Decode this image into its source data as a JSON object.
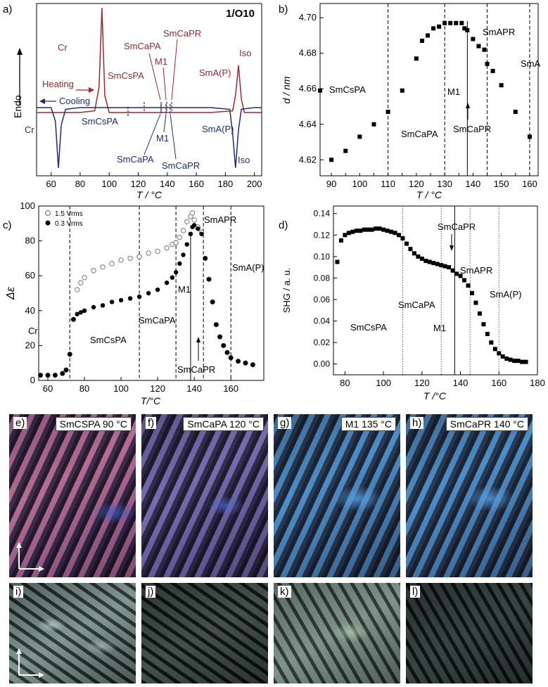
{
  "figure_title": "1/O10",
  "colors": {
    "heating": "#a0272b",
    "cooling": "#1e2b73",
    "black": "#000000"
  },
  "icons": {
    "polarizer": "crossed-polarizer-arrows-icon"
  },
  "panel_a": {
    "label": "a)",
    "title": "1/O10",
    "ylabel": "Endo",
    "xlabel": "T / °C",
    "xticks": [
      "60",
      "80",
      "100",
      "120",
      "140",
      "160",
      "180",
      "200"
    ],
    "heating_label": "Heating",
    "cooling_label": "Cooling",
    "heating_phases": [
      "Cr",
      "SmCsPA",
      "SmCaPA",
      "M1",
      "SmCaPR",
      "SmA(P)",
      "Iso"
    ],
    "cooling_phases": [
      "Cr",
      "SmCsPA",
      "SmCaPA",
      "M1",
      "SmCaPR",
      "SmA(P)",
      "Iso"
    ]
  },
  "panel_b": {
    "label": "b)",
    "ylabel": "d / nm",
    "xlabel": "T / °C",
    "xticks": [
      "90",
      "95",
      "100",
      "105",
      "110",
      "115",
      "120",
      "125",
      "130",
      "135",
      "140",
      "145",
      "150",
      "155",
      "160"
    ],
    "xticks_shown": [
      "90",
      "100",
      "110",
      "120",
      "130",
      "140",
      "150",
      "160"
    ],
    "yticks": [
      "4.62",
      "4.64",
      "4.66",
      "4.68",
      "4.70"
    ],
    "phases": [
      "SmCsPA",
      "SmCaPA",
      "M1",
      "SmCaPR",
      "SmAPR",
      "SmA"
    ]
  },
  "panel_c": {
    "label": "c)",
    "ylabel": "Δε",
    "xlabel": "T/°C",
    "xticks": [
      "60",
      "80",
      "100",
      "120",
      "140",
      "160"
    ],
    "yticks": [
      "0",
      "20",
      "40",
      "60",
      "80",
      "100"
    ],
    "legend": [
      "1.5 Vrms",
      "0.3 Vrms"
    ],
    "phases": [
      "Cr",
      "SmCsPA",
      "SmCaPA",
      "M1",
      "SmCaPR",
      "SmAPR",
      "SmA(P)"
    ]
  },
  "panel_d": {
    "label": "d)",
    "ylabel": "SHG / a. u.",
    "xlabel": "T /°C",
    "xticks": [
      "80",
      "100",
      "120",
      "140",
      "160",
      "180"
    ],
    "yticks": [
      "0.00",
      "0.02",
      "0.04",
      "0.06",
      "0.08",
      "0.10",
      "0.12",
      "0.14"
    ],
    "phases": [
      "SmCsPA",
      "SmCaPA",
      "M1",
      "SmCaPR",
      "SmAPR",
      "SmA(P)"
    ]
  },
  "photos_top": [
    {
      "label": "e)",
      "tag": "SmCSPA 90 °C"
    },
    {
      "label": "f)",
      "tag": "SmCaPA 120 °C"
    },
    {
      "label": "g)",
      "tag": "M1 135 °C"
    },
    {
      "label": "h)",
      "tag": "SmCaPR 140 °C"
    }
  ],
  "photos_bottom": [
    {
      "label": "i)"
    },
    {
      "label": "j)"
    },
    {
      "label": "k)"
    },
    {
      "label": "l)"
    }
  ],
  "chart_data": [
    {
      "type": "line",
      "title": "1/O10",
      "xlabel": "T / °C",
      "ylabel": "Endo",
      "xlim": [
        50,
        205
      ],
      "series": [
        {
          "name": "Heating",
          "x": [
            50,
            80,
            90,
            93,
            95,
            97,
            100,
            115,
            122,
            130,
            134,
            136,
            138,
            140,
            143,
            150,
            170,
            185,
            187,
            189,
            191,
            193,
            200,
            205
          ],
          "y": [
            0.3,
            0.3,
            0.31,
            0.45,
            0.92,
            0.4,
            0.3,
            0.3,
            0.3,
            0.3,
            0.3,
            0.3,
            0.3,
            0.3,
            0.3,
            0.3,
            0.3,
            0.31,
            0.4,
            0.58,
            0.38,
            0.3,
            0.3,
            0.3
          ]
        },
        {
          "name": "Cooling",
          "x": [
            50,
            60,
            63,
            65,
            67,
            70,
            80,
            100,
            110,
            130,
            133,
            136,
            140,
            150,
            170,
            183,
            185,
            187,
            189,
            191,
            200,
            205
          ],
          "y": [
            0.25,
            0.25,
            0.17,
            -0.1,
            0.15,
            0.24,
            0.25,
            0.25,
            0.25,
            0.25,
            0.25,
            0.25,
            0.25,
            0.25,
            0.25,
            0.24,
            0.1,
            -0.1,
            0.12,
            0.24,
            0.25,
            0.25
          ]
        }
      ]
    },
    {
      "type": "scatter",
      "xlabel": "T / °C",
      "ylabel": "d / nm",
      "xlim": [
        86,
        163
      ],
      "ylim": [
        4.611,
        4.708
      ],
      "series": [
        {
          "name": "",
          "x": [
            86,
            90,
            95,
            100,
            105,
            110,
            115,
            120,
            122,
            124,
            126,
            128,
            130,
            132,
            134,
            136,
            137,
            138,
            140,
            142,
            144,
            145,
            147,
            150,
            155,
            160
          ],
          "y": [
            4.659,
            4.62,
            4.625,
            4.633,
            4.64,
            4.647,
            4.659,
            4.677,
            4.687,
            4.69,
            4.694,
            4.695,
            4.697,
            4.697,
            4.697,
            4.697,
            4.694,
            4.693,
            4.688,
            4.684,
            4.682,
            4.674,
            4.67,
            4.662,
            4.647,
            4.633
          ]
        }
      ]
    },
    {
      "type": "scatter",
      "xlabel": "T/°C",
      "ylabel": "Δε",
      "xlim": [
        55,
        178
      ],
      "ylim": [
        0,
        100
      ],
      "series": [
        {
          "name": "1.5 Vrms",
          "x": [
            56,
            60,
            64,
            68,
            70,
            72,
            74,
            76,
            78,
            80,
            85,
            90,
            95,
            100,
            105,
            110,
            115,
            120,
            125,
            128,
            130,
            132,
            134,
            136,
            138,
            139,
            140,
            142,
            144,
            146,
            148,
            150,
            152,
            154,
            156,
            158,
            160,
            164,
            168,
            172
          ],
          "y": [
            3,
            3,
            3,
            4,
            6,
            15,
            35,
            52,
            56,
            59,
            63,
            65,
            67,
            69,
            70,
            71,
            73,
            74,
            76,
            78,
            79,
            82,
            86,
            91,
            94,
            96,
            92,
            88,
            85,
            70,
            58,
            45,
            32,
            25,
            20,
            16,
            13,
            11,
            10,
            9
          ]
        },
        {
          "name": "0.3 Vrms",
          "x": [
            56,
            60,
            64,
            68,
            70,
            72,
            74,
            76,
            78,
            80,
            85,
            90,
            95,
            100,
            105,
            110,
            115,
            120,
            125,
            128,
            130,
            132,
            134,
            136,
            138,
            139,
            140,
            142,
            144,
            146,
            148,
            150,
            152,
            154,
            156,
            158,
            160,
            164,
            168,
            172
          ],
          "y": [
            3,
            3,
            3,
            4,
            6,
            15,
            35,
            38,
            39,
            40,
            42,
            43,
            45,
            46,
            47,
            48,
            50,
            52,
            56,
            59,
            62,
            67,
            72,
            78,
            84,
            88,
            89,
            87,
            84,
            70,
            58,
            45,
            32,
            25,
            20,
            16,
            13,
            11,
            10,
            9
          ]
        }
      ]
    },
    {
      "type": "scatter",
      "xlabel": "T /°C",
      "ylabel": "SHG / a. u.",
      "xlim": [
        74,
        180
      ],
      "ylim": [
        -0.01,
        0.147
      ],
      "series": [
        {
          "name": "",
          "x": [
            76,
            78,
            80,
            82,
            84,
            86,
            88,
            90,
            92,
            94,
            96,
            98,
            100,
            102,
            104,
            106,
            108,
            110,
            112,
            114,
            116,
            118,
            120,
            122,
            124,
            126,
            128,
            130,
            132,
            134,
            136,
            138,
            140,
            142,
            144,
            146,
            148,
            150,
            152,
            154,
            156,
            158,
            160,
            162,
            164,
            166,
            168,
            170,
            172,
            174
          ],
          "y": [
            0.095,
            0.115,
            0.12,
            0.122,
            0.123,
            0.124,
            0.124,
            0.125,
            0.125,
            0.125,
            0.126,
            0.126,
            0.125,
            0.124,
            0.123,
            0.122,
            0.12,
            0.117,
            0.112,
            0.107,
            0.103,
            0.1,
            0.098,
            0.096,
            0.095,
            0.094,
            0.093,
            0.092,
            0.091,
            0.09,
            0.087,
            0.084,
            0.082,
            0.078,
            0.073,
            0.066,
            0.057,
            0.047,
            0.037,
            0.028,
            0.02,
            0.014,
            0.01,
            0.007,
            0.005,
            0.004,
            0.003,
            0.003,
            0.002,
            0.002
          ]
        }
      ]
    }
  ]
}
